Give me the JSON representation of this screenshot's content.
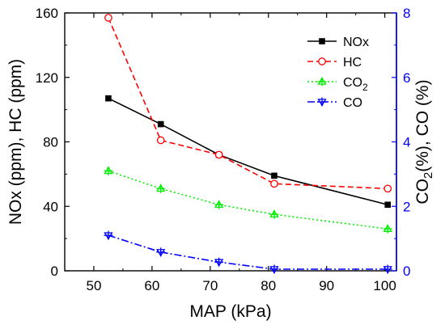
{
  "chart_data": {
    "type": "line",
    "title": "",
    "xlabel": "MAP (kPa)",
    "ylabel_left": "NOx (ppm), HC (ppm)",
    "ylabel_right": "CO2(%), CO (%)",
    "ylabel_right_parts": [
      "CO",
      "2",
      "(%), CO (%)"
    ],
    "xlim": [
      45,
      102
    ],
    "ylim_left": [
      0,
      160
    ],
    "ylim_right": [
      0,
      8
    ],
    "xticks": [
      "50",
      "60",
      "70",
      "80",
      "90",
      "100"
    ],
    "yticks_left": [
      "0",
      "40",
      "80",
      "120",
      "160"
    ],
    "yticks_right": [
      "0",
      "2",
      "4",
      "6",
      "8"
    ],
    "grid": false,
    "legend_position": "top-right",
    "series": [
      {
        "name": "NOx",
        "name_parts": [
          "NOx",
          ""
        ],
        "axis": "left",
        "color": "#000000",
        "dash": "",
        "marker": "square-filled",
        "x": [
          52.5,
          61.5,
          71.5,
          81,
          100.5
        ],
        "y": [
          107,
          91,
          72,
          59,
          41
        ]
      },
      {
        "name": "HC",
        "name_parts": [
          "HC",
          ""
        ],
        "axis": "left",
        "color": "#ff0000",
        "dash": "7,4",
        "marker": "circle-open",
        "x": [
          52.5,
          61.5,
          71.5,
          81,
          100.5
        ],
        "y": [
          157,
          81,
          72,
          54,
          51
        ]
      },
      {
        "name": "CO2",
        "name_parts": [
          "CO",
          "2"
        ],
        "axis": "right",
        "color": "#00ee00",
        "dash": "2,3",
        "marker": "triangle-up-cross",
        "x": [
          52.5,
          61.5,
          71.5,
          81,
          100.5
        ],
        "y": [
          3.1,
          2.55,
          2.05,
          1.75,
          1.3
        ]
      },
      {
        "name": "CO",
        "name_parts": [
          "CO",
          ""
        ],
        "axis": "right",
        "color": "#0000ff",
        "dash": "9,3,2,3",
        "marker": "triangle-down-cross",
        "x": [
          52.5,
          61.5,
          71.5,
          81,
          100.5
        ],
        "y": [
          1.1,
          0.58,
          0.27,
          0.05,
          0.05
        ]
      }
    ]
  }
}
